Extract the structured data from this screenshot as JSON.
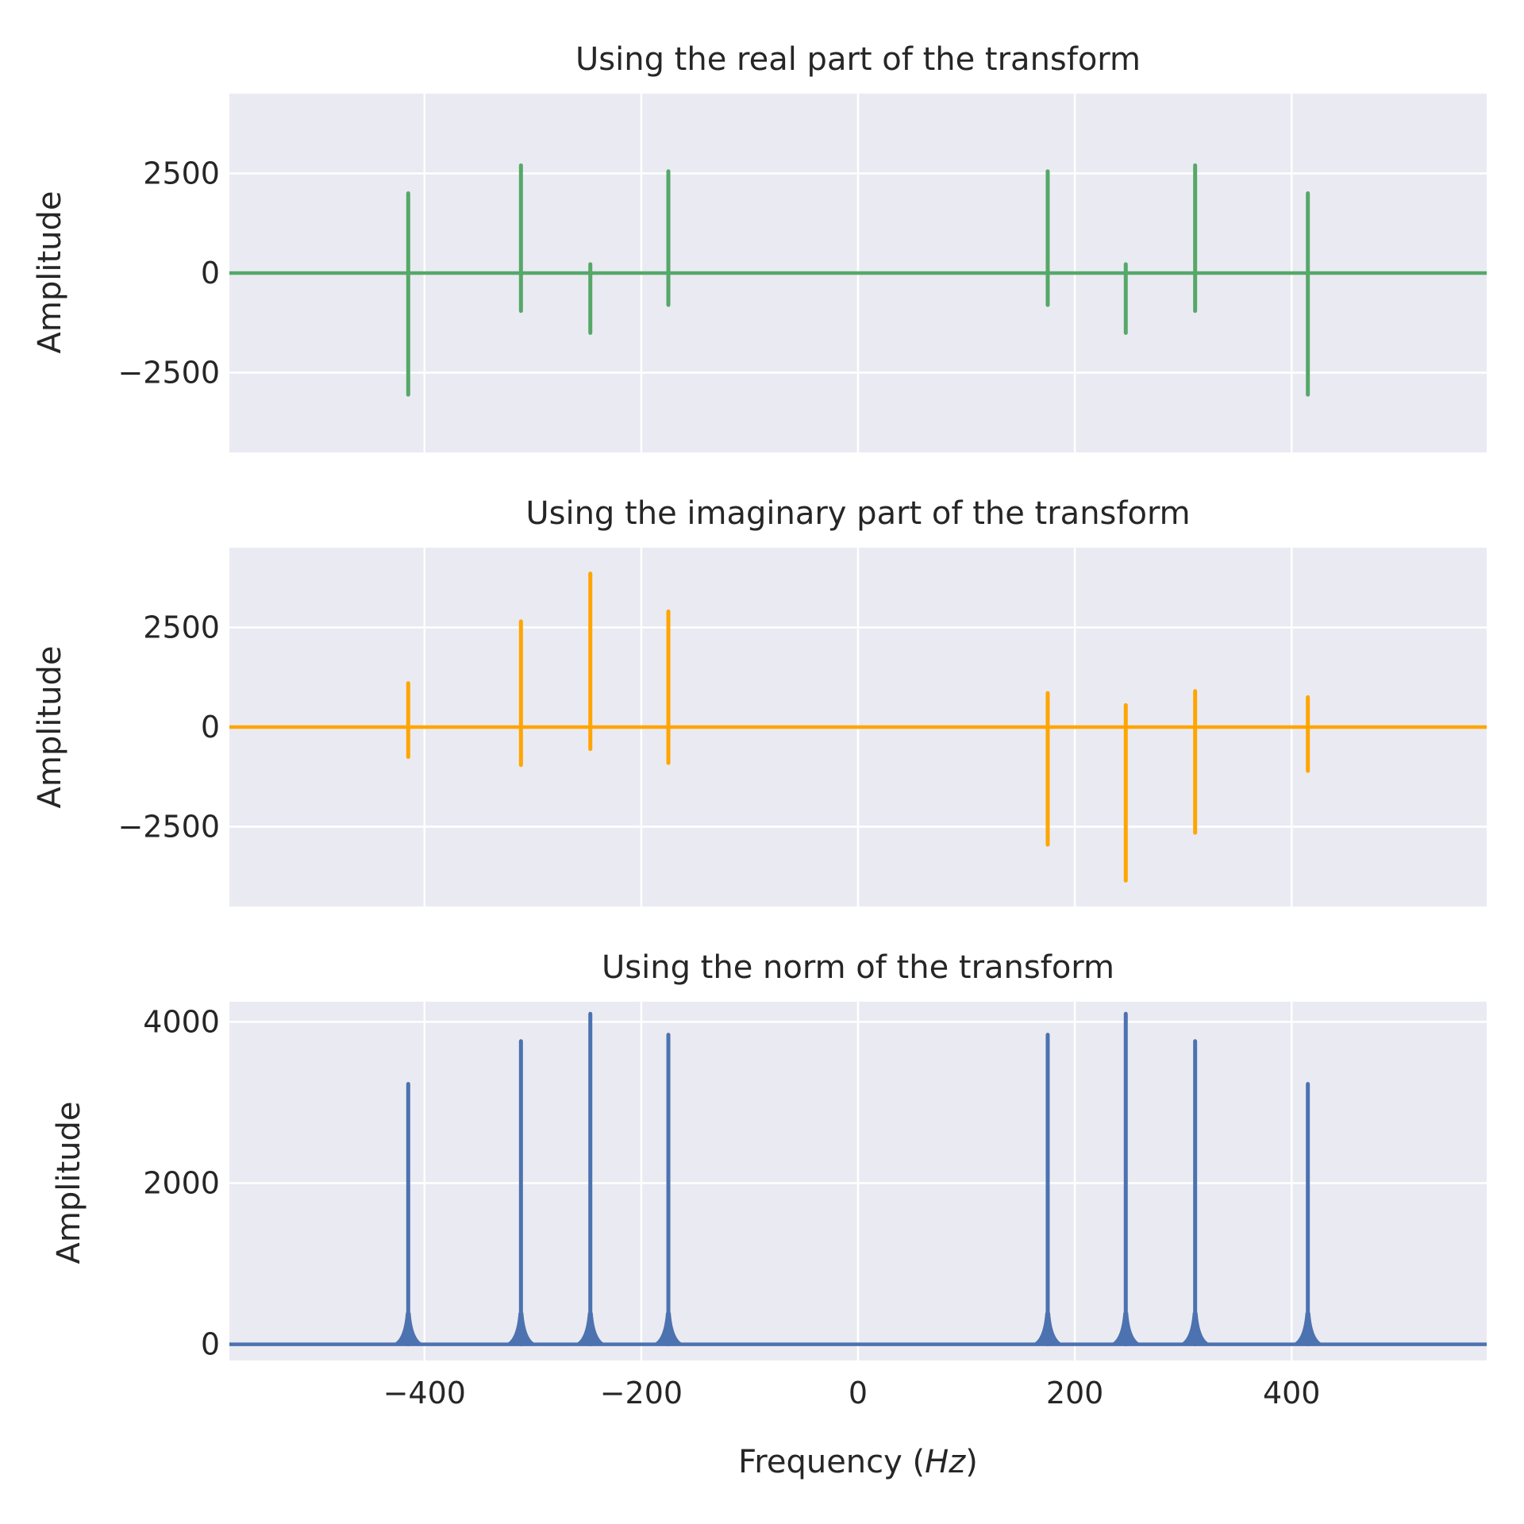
{
  "chart_data": [
    {
      "type": "line",
      "title": "Using the real part of the transform",
      "ylabel": "Amplitude",
      "xlabel": "",
      "xlim": [
        -580,
        580
      ],
      "ylim": [
        -4500,
        4500
      ],
      "yticks": [
        -2500,
        0,
        2500
      ],
      "ytick_labels": [
        "−2500",
        "0",
        "2500"
      ],
      "xticks": [
        -400,
        -200,
        0,
        200,
        400
      ],
      "grid": true,
      "series": [
        {
          "color": "#55a868",
          "spikes": [
            {
              "x": -415,
              "high": 2000,
              "low": -3050
            },
            {
              "x": -311,
              "high": 2700,
              "low": -950
            },
            {
              "x": -247,
              "high": 220,
              "low": -1500
            },
            {
              "x": -175,
              "high": 2550,
              "low": -800
            },
            {
              "x": 175,
              "high": 2550,
              "low": -800
            },
            {
              "x": 247,
              "high": 220,
              "low": -1500
            },
            {
              "x": 311,
              "high": 2700,
              "low": -950
            },
            {
              "x": 415,
              "high": 2000,
              "low": -3050
            }
          ]
        }
      ]
    },
    {
      "type": "line",
      "title": "Using the imaginary part of the transform",
      "ylabel": "Amplitude",
      "xlabel": "",
      "xlim": [
        -580,
        580
      ],
      "ylim": [
        -4500,
        4500
      ],
      "yticks": [
        -2500,
        0,
        2500
      ],
      "ytick_labels": [
        "−2500",
        "0",
        "2500"
      ],
      "xticks": [
        -400,
        -200,
        0,
        200,
        400
      ],
      "grid": true,
      "series": [
        {
          "color": "#ffa500",
          "spikes": [
            {
              "x": -415,
              "high": 1100,
              "low": -750
            },
            {
              "x": -311,
              "high": 2650,
              "low": -950
            },
            {
              "x": -247,
              "high": 3850,
              "low": -550
            },
            {
              "x": -175,
              "high": 2900,
              "low": -900
            },
            {
              "x": 175,
              "high": 850,
              "low": -2950
            },
            {
              "x": 247,
              "high": 550,
              "low": -3850
            },
            {
              "x": 311,
              "high": 900,
              "low": -2650
            },
            {
              "x": 415,
              "high": 750,
              "low": -1100
            }
          ]
        }
      ]
    },
    {
      "type": "line",
      "title": "Using the norm of the transform",
      "ylabel": "Amplitude",
      "xlabel": "Frequency (Hz)",
      "xlim": [
        -580,
        580
      ],
      "ylim": [
        -200,
        4250
      ],
      "yticks": [
        0,
        2000,
        4000
      ],
      "ytick_labels": [
        "0",
        "2000",
        "4000"
      ],
      "xticks": [
        -400,
        -200,
        0,
        200,
        400
      ],
      "xtick_labels": [
        "−400",
        "−200",
        "0",
        "200",
        "400"
      ],
      "grid": true,
      "series": [
        {
          "color": "#4c72b0",
          "spikes": [
            {
              "x": -415,
              "high": 3230,
              "low": 0
            },
            {
              "x": -311,
              "high": 3760,
              "low": 0
            },
            {
              "x": -247,
              "high": 4100,
              "low": 0
            },
            {
              "x": -175,
              "high": 3840,
              "low": 0
            },
            {
              "x": 175,
              "high": 3840,
              "low": 0
            },
            {
              "x": 247,
              "high": 4100,
              "low": 0
            },
            {
              "x": 311,
              "high": 3760,
              "low": 0
            },
            {
              "x": 415,
              "high": 3230,
              "low": 0
            }
          ]
        }
      ]
    }
  ]
}
